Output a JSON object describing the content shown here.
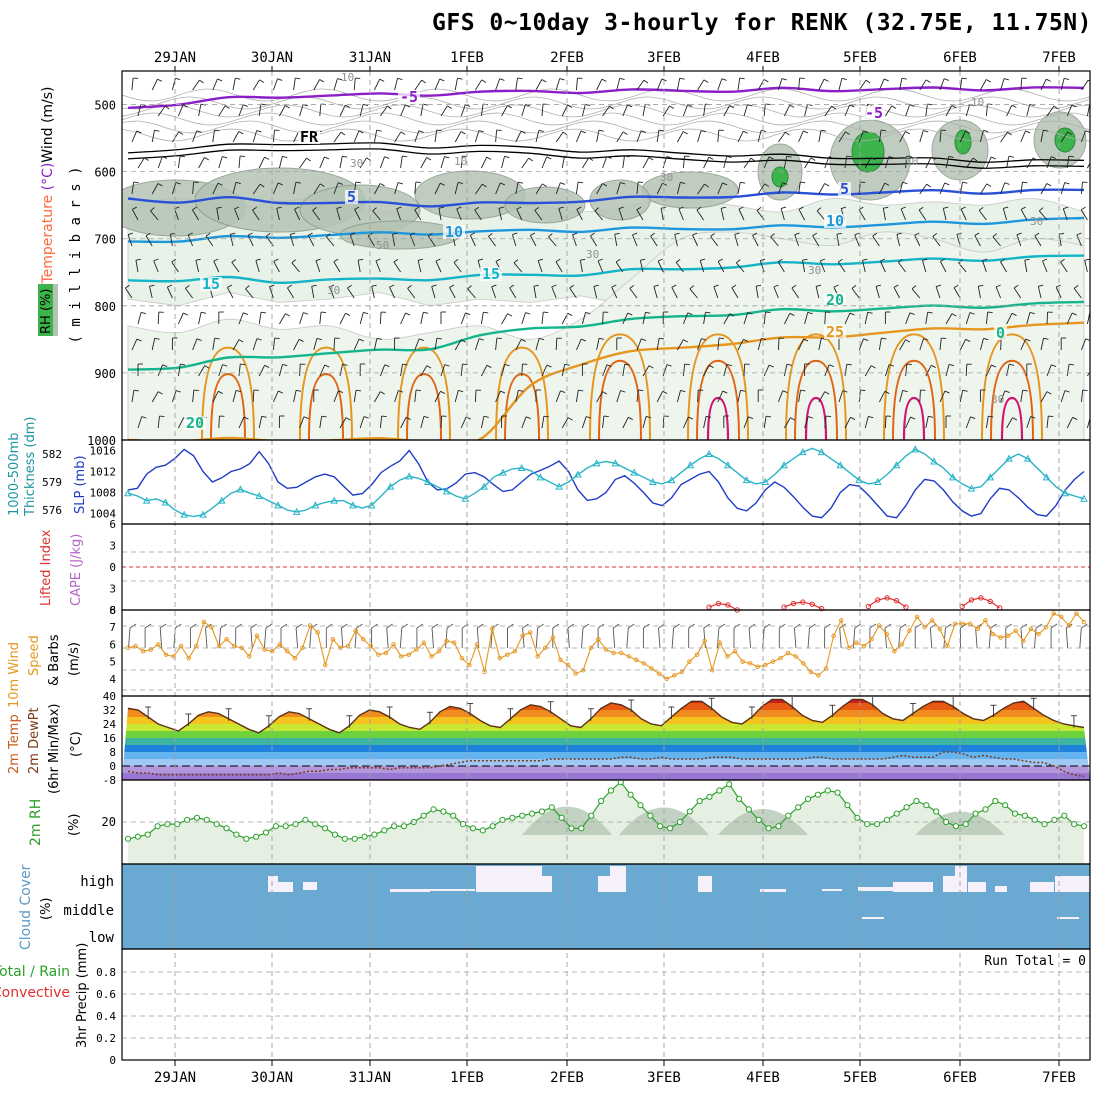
{
  "title": "GFS 0~10day 3-hourly for RENK (32.75E, 11.75N)",
  "date_labels": [
    "29JAN",
    "30JAN",
    "31JAN",
    "1FEB",
    "2FEB",
    "3FEB",
    "4FEB",
    "5FEB",
    "6FEB",
    "7FEB"
  ],
  "colors": {
    "rh_green": "#3cb44b",
    "rh_gray": "#8a9a8a",
    "temp_purple": "#8a1ec8",
    "temp_blue": "#2850d8",
    "temp_lightblue": "#1e96dc",
    "temp_cyan": "#14b4c8",
    "temp_teal": "#14b48c",
    "temp_orange": "#e6961e",
    "temp_darkorange": "#e06414",
    "temp_magenta": "#d2146e",
    "slp": "#1e3cc8",
    "thickness": "#28b4c8",
    "wind10": "#e6961e",
    "rh2m": "#2ca02c",
    "cloud": "#6aaad2",
    "grid": "#a0a0a0"
  },
  "chart_data": [
    {
      "panel": "upper-air",
      "type": "heatmap",
      "ylabel_parts": [
        "RH (%)",
        "Temperature (°C)",
        "Wind (m/s)"
      ],
      "ylabel_unit": "( m i l l i b a r s )",
      "y_ticks": [
        500,
        600,
        700,
        800,
        900,
        1000
      ],
      "ylim": [
        1000,
        450
      ],
      "contour_labels": {
        "temperature": [
          "-5",
          "5",
          "10",
          "15",
          "20",
          "25",
          "0",
          "FR"
        ],
        "rh": [
          "10",
          "30",
          "50"
        ]
      },
      "isotherms": [
        {
          "label": "-5",
          "p": [
            505,
            498,
            492,
            488,
            486,
            486,
            484,
            482,
            481,
            480,
            480,
            479,
            479,
            478,
            478,
            477,
            477,
            476,
            476,
            476
          ]
        },
        {
          "label": "FR",
          "p": [
            572,
            565,
            562,
            558,
            558,
            560,
            562,
            562,
            565,
            568,
            570,
            572,
            575,
            577,
            578,
            580,
            582,
            583,
            584,
            584
          ]
        },
        {
          "label": "5",
          "p": [
            640,
            644,
            641,
            645,
            646,
            648,
            649,
            647,
            648,
            642,
            640,
            638,
            636,
            634,
            632,
            631,
            630,
            630,
            629,
            628
          ]
        },
        {
          "label": "10",
          "p": [
            704,
            702,
            699,
            697,
            694,
            693,
            691,
            690,
            688,
            687,
            686,
            685,
            684,
            683,
            681,
            679,
            677,
            675,
            673,
            670
          ]
        },
        {
          "label": "15",
          "p": [
            762,
            761,
            760,
            764,
            760,
            762,
            759,
            755,
            755,
            752,
            748,
            745,
            741,
            738,
            736,
            734,
            732,
            730,
            728,
            726
          ]
        },
        {
          "label": "20",
          "p": [
            895,
            890,
            880,
            875,
            870,
            868,
            862,
            845,
            835,
            828,
            822,
            815,
            812,
            808,
            806,
            804,
            802,
            800,
            798,
            795
          ]
        },
        {
          "label": "25",
          "p": [
            1000,
            1000,
            1000,
            1000,
            1000,
            1000,
            1000,
            1000,
            920,
            885,
            870,
            862,
            855,
            850,
            845,
            840,
            836,
            832,
            830,
            826
          ]
        }
      ]
    },
    {
      "panel": "slp-thickness",
      "type": "line",
      "ylabel_left": "1000-500mb Thickness (dm)",
      "ylabel_right": "SLP (mb)",
      "left_ticks": [
        576,
        579,
        582
      ],
      "right_ticks": [
        1004,
        1008,
        1012,
        1016
      ],
      "slp_range": [
        1002,
        1018
      ],
      "series": [
        {
          "name": "SLP (mb)",
          "values": [
            1008.5,
            1008.8,
            1011.5,
            1012.8,
            1013.2,
            1014.5,
            1016.2,
            1015.0,
            1012.0,
            1010.0,
            1010.8,
            1012.0,
            1012.5,
            1013.5,
            1015.8,
            1013.5,
            1010.0,
            1008.8,
            1009.0,
            1010.0,
            1011.0,
            1011.5,
            1011.0,
            1009.2,
            1007.5,
            1007.8,
            1009.5,
            1011.8,
            1013.0,
            1014.0,
            1016.0,
            1013.5,
            1010.0,
            1008.5,
            1008.7,
            1009.8,
            1011.5,
            1011.8,
            1011.0,
            1009.5,
            1008.2,
            1008.5,
            1010.0,
            1011.5,
            1012.2,
            1013.0,
            1014.0,
            1012.0,
            1008.5,
            1006.5,
            1006.8,
            1008.0,
            1010.5,
            1011.2,
            1009.8,
            1008.0,
            1006.0,
            1005.5,
            1007.0,
            1009.5,
            1010.5,
            1011.5,
            1012.0,
            1010.0,
            1007.0,
            1005.0,
            1004.5,
            1006.0,
            1008.5,
            1010.0,
            1009.0,
            1007.2,
            1005.2,
            1003.5,
            1003.2,
            1005.0,
            1008.0,
            1009.5,
            1009.2,
            1007.5,
            1005.5,
            1003.5,
            1003.2,
            1005.5,
            1008.5,
            1010.5,
            1010.2,
            1008.5,
            1006.2,
            1004.5,
            1003.5,
            1004.0,
            1006.8,
            1008.8,
            1008.5,
            1007.0,
            1005.2,
            1003.8,
            1003.5,
            1005.5,
            1008.5,
            1010.5,
            1012.0
          ]
        },
        {
          "name": "1000-500mb Thickness (dm)",
          "values": [
            577.8,
            577.5,
            577.0,
            577.2,
            576.8,
            576.0,
            575.5,
            575.3,
            575.5,
            576.2,
            577.0,
            577.8,
            578.2,
            577.8,
            577.5,
            577.0,
            576.5,
            576.0,
            575.8,
            576.0,
            576.5,
            576.8,
            577.0,
            577.0,
            576.5,
            576.2,
            576.5,
            577.5,
            578.5,
            579.2,
            579.6,
            579.4,
            579.0,
            578.5,
            578.0,
            577.5,
            577.2,
            577.8,
            578.5,
            579.5,
            580.0,
            580.4,
            580.5,
            580.2,
            579.5,
            579.0,
            578.5,
            579.0,
            579.8,
            580.5,
            581.0,
            581.2,
            581.0,
            580.5,
            580.0,
            579.5,
            579.0,
            578.8,
            579.2,
            580.0,
            580.8,
            581.5,
            582.0,
            581.5,
            580.8,
            580.0,
            579.2,
            578.8,
            579.0,
            579.8,
            580.8,
            581.5,
            582.2,
            582.6,
            582.2,
            581.5,
            580.8,
            580.0,
            579.2,
            578.8,
            579.0,
            579.8,
            580.8,
            581.8,
            582.5,
            582.0,
            581.2,
            580.5,
            579.5,
            578.8,
            578.3,
            578.5,
            579.5,
            580.5,
            581.5,
            582.0,
            581.5,
            580.5,
            579.5,
            578.5,
            577.8,
            577.5,
            577.2
          ]
        }
      ]
    },
    {
      "panel": "lifted-index-cape",
      "type": "line",
      "ylabel": [
        "Lifted Index",
        "CAPE (J/kg)"
      ],
      "y_ticks": [
        6,
        3,
        0,
        -3,
        -6
      ],
      "ylim": [
        6,
        -6
      ],
      "series": [
        {
          "name": "Lifted Index",
          "segments": [
            {
              "x": [
                62,
                63,
                64,
                65
              ],
              "values": [
                -5.6,
                -5.1,
                -5.3,
                -6.0
              ]
            },
            {
              "x": [
                70,
                71,
                72,
                73,
                74
              ],
              "values": [
                -5.6,
                -5.1,
                -4.9,
                -5.2,
                -5.8
              ]
            },
            {
              "x": [
                79,
                80,
                81,
                82,
                83
              ],
              "values": [
                -5.5,
                -4.6,
                -4.3,
                -4.7,
                -5.6
              ]
            },
            {
              "x": [
                89,
                90,
                91,
                92,
                93
              ],
              "values": [
                -5.5,
                -4.6,
                -4.3,
                -4.8,
                -5.7
              ]
            }
          ]
        }
      ]
    },
    {
      "panel": "wind10m",
      "type": "line",
      "ylabel": [
        "10m Wind",
        "Speed",
        "& Barbs"
      ],
      "yunit": "(m/s)",
      "y_ticks": [
        4,
        5,
        6,
        7,
        8
      ],
      "ylim": [
        3,
        8
      ],
      "series": [
        {
          "name": "10m Wind Speed",
          "values": [
            5.8,
            5.9,
            5.6,
            5.7,
            6.0,
            5.4,
            5.3,
            5.9,
            5.2,
            5.9,
            7.3,
            7.0,
            5.9,
            6.3,
            5.9,
            5.8,
            5.3,
            6.5,
            5.7,
            5.6,
            6.0,
            5.6,
            5.2,
            5.8,
            7.1,
            6.7,
            4.8,
            6.3,
            5.8,
            5.9,
            6.8,
            6.3,
            5.9,
            5.4,
            5.5,
            6.0,
            5.3,
            5.4,
            5.7,
            6.1,
            5.3,
            5.6,
            6.2,
            6.1,
            5.2,
            4.8,
            6.0,
            4.4,
            6.9,
            5.2,
            5.4,
            5.6,
            6.5,
            6.7,
            5.3,
            5.8,
            6.4,
            5.1,
            4.8,
            4.3,
            4.5,
            5.8,
            6.3,
            5.7,
            5.5,
            5.5,
            5.3,
            5.1,
            4.9,
            4.6,
            4.3,
            4.0,
            4.2,
            4.4,
            5.0,
            5.4,
            6.2,
            4.5,
            6.1,
            5.3,
            5.6,
            5.0,
            4.9,
            4.7,
            4.8,
            5.0,
            5.2,
            5.5,
            5.3,
            4.9,
            4.4,
            4.2,
            4.6,
            6.5,
            7.4,
            5.8,
            6.1,
            5.9,
            6.3,
            7.1,
            6.6,
            5.6,
            6.0,
            6.8,
            7.6,
            7.0,
            7.4,
            6.9,
            5.9,
            7.2,
            7.2,
            7.2,
            6.9,
            7.4,
            6.6,
            6.4,
            6.5,
            6.8,
            6.2,
            6.9,
            6.6,
            7.0,
            7.8,
            7.6,
            7.1,
            7.8,
            7.3
          ]
        }
      ]
    },
    {
      "panel": "temp2m",
      "type": "area",
      "ylabel": [
        "2m Temp",
        "2m DewPt",
        "(6hr Min/Max)"
      ],
      "yunit": "(°C)",
      "y_ticks": [
        -8,
        0,
        8,
        16,
        24,
        32,
        40
      ],
      "ylim": [
        -8,
        40
      ],
      "series": [
        {
          "name": "2m Temp",
          "values": [
            33,
            32,
            28,
            24,
            22,
            20,
            24,
            29,
            31,
            30,
            27,
            24,
            21,
            19,
            23,
            28,
            31,
            30,
            27,
            24,
            21,
            19,
            23,
            29,
            32,
            31,
            28,
            24,
            22,
            21,
            25,
            31,
            34,
            33,
            30,
            26,
            23,
            22,
            27,
            32,
            35,
            34,
            31,
            27,
            23,
            22,
            27,
            33,
            36,
            35,
            32,
            27,
            24,
            23,
            28,
            33,
            37,
            37,
            33,
            28,
            25,
            24,
            28,
            34,
            38,
            38,
            34,
            29,
            26,
            25,
            29,
            34,
            38,
            38,
            35,
            30,
            27,
            26,
            30,
            34,
            37,
            37,
            34,
            30,
            27,
            26,
            29,
            33,
            36,
            37,
            33,
            29,
            26,
            24,
            23,
            22
          ]
        },
        {
          "name": "2m DewPt",
          "values": [
            -3,
            -4,
            -4,
            -5,
            -5,
            -5,
            -5,
            -5,
            -5,
            -5,
            -5,
            -5,
            -5,
            -5,
            -5,
            -4,
            -5,
            -4,
            -3,
            -3,
            -2,
            -2,
            -1,
            -1,
            -1,
            -1,
            -2,
            -1,
            -1,
            -1,
            -1,
            0,
            1,
            2,
            3,
            3,
            3,
            3,
            3,
            3,
            3,
            3,
            4,
            4,
            4,
            4,
            4,
            4,
            4,
            5,
            5,
            4,
            4,
            5,
            4,
            4,
            4,
            4,
            5,
            5,
            5,
            4,
            4,
            4,
            4,
            4,
            4,
            4,
            5,
            5,
            4,
            4,
            4,
            4,
            4,
            4,
            5,
            6,
            5,
            5,
            5,
            8,
            8,
            7,
            5,
            6,
            5,
            4,
            4,
            3,
            2,
            2,
            0,
            -3,
            -5,
            -6
          ]
        }
      ]
    },
    {
      "panel": "rh2m",
      "type": "line",
      "ylabel": "2m RH",
      "yunit": "(%)",
      "y_ticks": [
        20
      ],
      "ylim": [
        0,
        40
      ],
      "series": [
        {
          "name": "2m RH",
          "values": [
            12,
            13,
            14,
            18,
            19,
            19,
            21,
            22,
            21,
            19,
            17,
            14,
            12,
            13,
            15,
            18,
            18,
            19,
            21,
            19,
            17,
            14,
            12,
            12,
            13,
            14,
            16,
            18,
            18,
            20,
            23,
            26,
            25,
            23,
            19,
            17,
            16,
            18,
            21,
            22,
            23,
            24,
            25,
            27,
            22,
            17,
            17,
            23,
            30,
            35,
            39,
            33,
            28,
            23,
            18,
            17,
            20,
            25,
            30,
            32,
            35,
            38,
            31,
            26,
            21,
            17,
            18,
            23,
            27,
            31,
            33,
            35,
            34,
            28,
            22,
            19,
            19,
            21,
            24,
            27,
            30,
            28,
            25,
            20,
            18,
            19,
            24,
            26,
            30,
            28,
            24,
            23,
            21,
            19,
            21,
            23,
            19,
            18
          ]
        }
      ]
    },
    {
      "panel": "cloud-cover",
      "type": "heatmap",
      "ylabel": [
        "Cloud Cover",
        "(%)"
      ],
      "levels": [
        "high",
        "middle",
        "low"
      ]
    },
    {
      "panel": "precip",
      "type": "bar",
      "ylabel": [
        "3hr Precip (mm)",
        "Total / Rain",
        "Convective"
      ],
      "y_ticks": [
        0,
        0.2,
        0.4,
        0.6,
        0.8
      ],
      "ylim": [
        0,
        1
      ],
      "annotation": "Run Total = 0",
      "values": []
    }
  ]
}
